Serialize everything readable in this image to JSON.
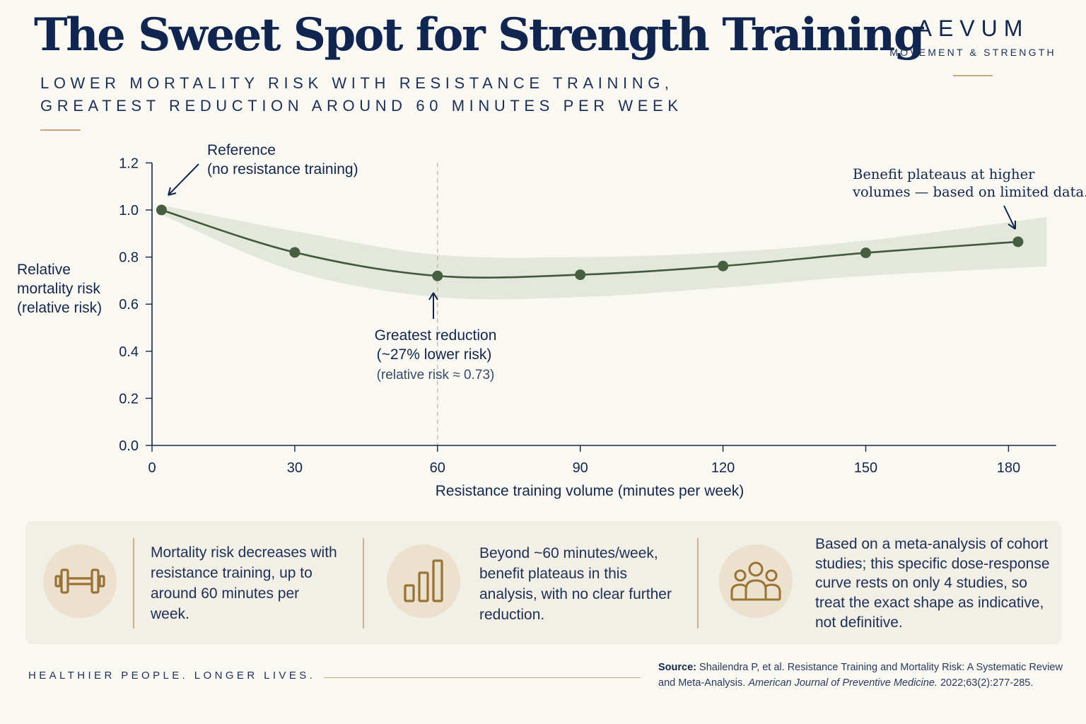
{
  "header": {
    "title": "The Sweet Spot for Strength Training",
    "subtitle_line1": "LOWER MORTALITY RISK WITH RESISTANCE TRAINING,",
    "subtitle_line2": "GREATEST REDUCTION AROUND 60 MINUTES PER WEEK"
  },
  "brand": {
    "name": "AEVUM",
    "tagline": "MOVEMENT & STRENGTH"
  },
  "colors": {
    "navy": "#13264a",
    "gold": "#c8a874",
    "curve": "#3f5a3a",
    "point": "#455f40",
    "band": "#e4e8dc",
    "icon_bg": "#ebe1cc",
    "icon_stroke": "#9a7236",
    "panel_bg": "#f1efe6"
  },
  "chart_data": {
    "type": "line",
    "x": [
      2,
      30,
      60,
      90,
      120,
      150,
      182
    ],
    "values": [
      1.0,
      0.82,
      0.72,
      0.725,
      0.762,
      0.818,
      0.865
    ],
    "band": {
      "x": [
        2,
        30,
        60,
        90,
        120,
        150,
        188
      ],
      "upper": [
        1.02,
        0.91,
        0.81,
        0.8,
        0.82,
        0.87,
        0.97
      ],
      "lower": [
        0.98,
        0.74,
        0.63,
        0.63,
        0.67,
        0.72,
        0.76
      ]
    },
    "xlabel": "Resistance training volume (minutes per week)",
    "ylabel": [
      "Relative",
      "mortality risk",
      "(relative risk)"
    ],
    "xlim": [
      0,
      190
    ],
    "ylim": [
      0,
      1.2
    ],
    "xticks": [
      "0",
      "30",
      "60",
      "90",
      "120",
      "150",
      "180"
    ],
    "yticks": [
      "0.0",
      "0.2",
      "0.4",
      "0.6",
      "0.8",
      "1.0",
      "1.2"
    ],
    "reference_line_x": 60,
    "annotations": {
      "reference": [
        "Reference",
        "(no resistance training)"
      ],
      "greatest": [
        "Greatest reduction",
        "(~27% lower risk)"
      ],
      "greatest_note": "(relative risk ≈ 0.73)",
      "plateau": [
        "Benefit plateaus at higher",
        "volumes — based on limited data."
      ]
    }
  },
  "info": [
    {
      "icon": "dumbbell-icon",
      "text": "Mortality risk decreases with resistance training, up to around 60 minutes per week."
    },
    {
      "icon": "bar-chart-icon",
      "text": "Beyond ~60 minutes/week, benefit plateaus in this analysis, with no clear further reduction."
    },
    {
      "icon": "people-group-icon",
      "text": "Based on a meta-analysis of cohort studies; this specific dose-response curve rests on only 4 studies, so treat the exact shape as indicative, not definitive."
    }
  ],
  "footer": {
    "tagline": "HEALTHIER PEOPLE. LONGER LIVES.",
    "source_label": "Source:",
    "source_text": "Shailendra P, et al. Resistance Training and Mortality Risk: A Systematic Review and Meta-Analysis.",
    "source_journal": "American Journal of Preventive Medicine.",
    "source_citation": "2022;63(2):277-285."
  }
}
